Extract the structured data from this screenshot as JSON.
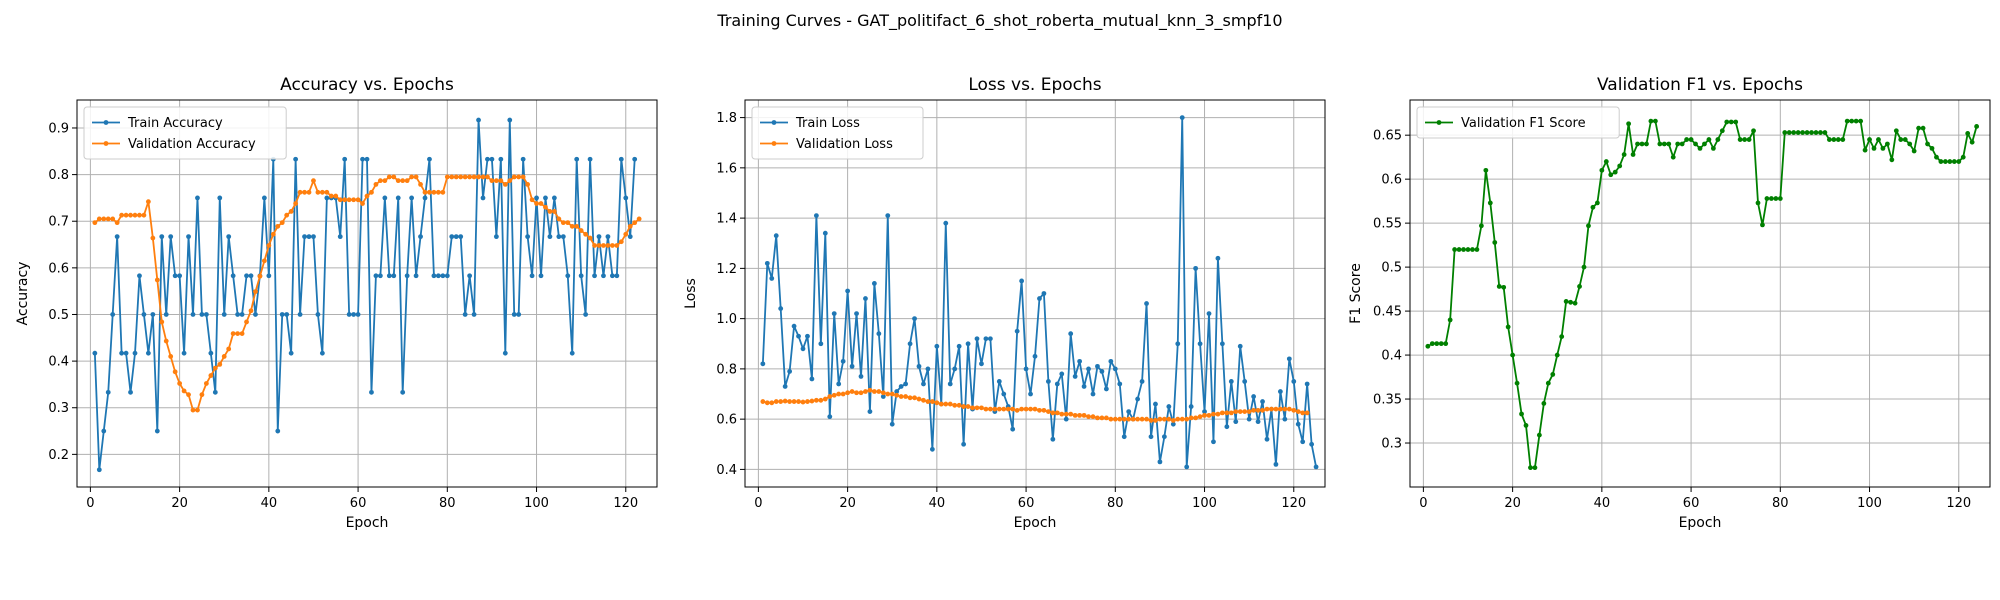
{
  "figure": {
    "suptitle": "Training Curves - GAT_politifact_6_shot_roberta_mutual_knn_3_smpf10"
  },
  "colors": {
    "train": "#1f77b4",
    "val": "#ff7f0e",
    "f1": "#008000",
    "grid": "#b0b0b0"
  },
  "chart_data": [
    {
      "type": "line",
      "title": "Accuracy vs. Epochs",
      "xlabel": "Epoch",
      "ylabel": "Accuracy",
      "xlim": [
        -3,
        127
      ],
      "ylim": [
        0.13,
        0.96
      ],
      "xticks": [
        0,
        20,
        40,
        60,
        80,
        100,
        120
      ],
      "yticks": [
        0.2,
        0.3,
        0.4,
        0.5,
        0.6,
        0.7,
        0.8,
        0.9
      ],
      "grid": true,
      "legend_position": "upper left",
      "x_start": 1,
      "series": [
        {
          "name": "Train Accuracy",
          "color": "#1f77b4",
          "values": [
            0.417,
            0.167,
            0.25,
            0.333,
            0.5,
            0.667,
            0.417,
            0.417,
            0.333,
            0.417,
            0.583,
            0.5,
            0.417,
            0.5,
            0.25,
            0.667,
            0.5,
            0.667,
            0.583,
            0.583,
            0.417,
            0.667,
            0.5,
            0.75,
            0.5,
            0.5,
            0.417,
            0.333,
            0.75,
            0.5,
            0.667,
            0.583,
            0.5,
            0.5,
            0.583,
            0.583,
            0.5,
            0.583,
            0.75,
            0.583,
            0.833,
            0.25,
            0.5,
            0.5,
            0.417,
            0.833,
            0.5,
            0.667,
            0.667,
            0.667,
            0.5,
            0.417,
            0.75,
            0.75,
            0.75,
            0.667,
            0.833,
            0.5,
            0.5,
            0.5,
            0.833,
            0.833,
            0.333,
            0.583,
            0.583,
            0.75,
            0.583,
            0.583,
            0.75,
            0.333,
            0.583,
            0.75,
            0.583,
            0.667,
            0.75,
            0.833,
            0.583,
            0.583,
            0.583,
            0.583,
            0.667,
            0.667,
            0.667,
            0.5,
            0.583,
            0.5,
            0.917,
            0.75,
            0.833,
            0.833,
            0.667,
            0.833,
            0.417,
            0.917,
            0.5,
            0.5,
            0.833,
            0.667,
            0.583,
            0.75,
            0.583,
            0.75,
            0.667,
            0.75,
            0.667,
            0.667,
            0.583,
            0.417,
            0.833,
            0.583,
            0.5,
            0.833,
            0.583,
            0.667,
            0.583,
            0.667,
            0.583,
            0.583,
            0.833,
            0.75,
            0.667,
            0.833
          ]
        },
        {
          "name": "Validation Accuracy",
          "color": "#ff7f0e",
          "values": [
            0.697,
            0.705,
            0.705,
            0.705,
            0.705,
            0.697,
            0.713,
            0.713,
            0.713,
            0.713,
            0.713,
            0.713,
            0.742,
            0.664,
            0.574,
            0.484,
            0.443,
            0.41,
            0.377,
            0.352,
            0.336,
            0.328,
            0.295,
            0.295,
            0.328,
            0.352,
            0.369,
            0.385,
            0.393,
            0.41,
            0.426,
            0.459,
            0.459,
            0.459,
            0.484,
            0.508,
            0.549,
            0.582,
            0.615,
            0.648,
            0.672,
            0.689,
            0.697,
            0.713,
            0.721,
            0.738,
            0.762,
            0.762,
            0.762,
            0.787,
            0.762,
            0.762,
            0.762,
            0.754,
            0.754,
            0.746,
            0.746,
            0.746,
            0.746,
            0.746,
            0.738,
            0.754,
            0.762,
            0.779,
            0.787,
            0.787,
            0.795,
            0.795,
            0.787,
            0.787,
            0.787,
            0.795,
            0.795,
            0.779,
            0.762,
            0.762,
            0.762,
            0.762,
            0.762,
            0.795,
            0.795,
            0.795,
            0.795,
            0.795,
            0.795,
            0.795,
            0.795,
            0.795,
            0.795,
            0.787,
            0.787,
            0.787,
            0.779,
            0.787,
            0.795,
            0.795,
            0.795,
            0.779,
            0.746,
            0.738,
            0.738,
            0.73,
            0.721,
            0.721,
            0.705,
            0.697,
            0.697,
            0.689,
            0.689,
            0.68,
            0.672,
            0.664,
            0.648,
            0.648,
            0.648,
            0.648,
            0.648,
            0.648,
            0.656,
            0.672,
            0.689,
            0.697,
            0.705
          ]
        }
      ]
    },
    {
      "type": "line",
      "title": "Loss vs. Epochs",
      "xlabel": "Epoch",
      "ylabel": "Loss",
      "xlim": [
        -3,
        127
      ],
      "ylim": [
        0.33,
        1.87
      ],
      "xticks": [
        0,
        20,
        40,
        60,
        80,
        100,
        120
      ],
      "yticks": [
        0.4,
        0.6,
        0.8,
        1.0,
        1.2,
        1.4,
        1.6,
        1.8
      ],
      "grid": true,
      "legend_position": "upper left",
      "x_start": 1,
      "series": [
        {
          "name": "Train Loss",
          "color": "#1f77b4",
          "values": [
            0.82,
            1.22,
            1.16,
            1.33,
            1.04,
            0.73,
            0.79,
            0.97,
            0.93,
            0.88,
            0.93,
            0.76,
            1.41,
            0.9,
            1.34,
            0.61,
            1.02,
            0.74,
            0.83,
            1.11,
            0.81,
            1.02,
            0.77,
            1.08,
            0.63,
            1.14,
            0.94,
            0.69,
            1.41,
            0.58,
            0.71,
            0.73,
            0.74,
            0.9,
            1.0,
            0.81,
            0.74,
            0.8,
            0.48,
            0.89,
            0.66,
            1.38,
            0.74,
            0.8,
            0.89,
            0.5,
            0.9,
            0.64,
            0.92,
            0.82,
            0.92,
            0.92,
            0.63,
            0.75,
            0.7,
            0.65,
            0.56,
            0.95,
            1.15,
            0.8,
            0.7,
            0.85,
            1.08,
            1.1,
            0.75,
            0.52,
            0.74,
            0.78,
            0.6,
            0.94,
            0.77,
            0.83,
            0.73,
            0.8,
            0.7,
            0.81,
            0.79,
            0.72,
            0.83,
            0.8,
            0.74,
            0.53,
            0.63,
            0.6,
            0.68,
            0.75,
            1.06,
            0.53,
            0.66,
            0.43,
            0.53,
            0.65,
            0.58,
            0.9,
            1.8,
            0.41,
            0.65,
            1.2,
            0.9,
            0.63,
            1.02,
            0.51,
            1.24,
            0.9,
            0.57,
            0.75,
            0.59,
            0.89,
            0.75,
            0.6,
            0.69,
            0.59,
            0.67,
            0.52,
            0.64,
            0.42,
            0.71,
            0.6,
            0.84,
            0.75,
            0.58,
            0.51,
            0.74,
            0.5,
            0.41
          ]
        },
        {
          "name": "Validation Loss",
          "color": "#ff7f0e",
          "values": [
            0.67,
            0.665,
            0.665,
            0.67,
            0.67,
            0.672,
            0.67,
            0.67,
            0.67,
            0.668,
            0.67,
            0.672,
            0.675,
            0.675,
            0.68,
            0.69,
            0.695,
            0.7,
            0.7,
            0.705,
            0.71,
            0.705,
            0.705,
            0.71,
            0.715,
            0.71,
            0.71,
            0.705,
            0.7,
            0.7,
            0.695,
            0.69,
            0.69,
            0.685,
            0.685,
            0.68,
            0.675,
            0.67,
            0.67,
            0.665,
            0.66,
            0.66,
            0.66,
            0.655,
            0.655,
            0.65,
            0.65,
            0.645,
            0.645,
            0.645,
            0.64,
            0.64,
            0.64,
            0.64,
            0.64,
            0.64,
            0.64,
            0.635,
            0.64,
            0.64,
            0.64,
            0.64,
            0.635,
            0.635,
            0.63,
            0.625,
            0.625,
            0.62,
            0.62,
            0.62,
            0.615,
            0.615,
            0.615,
            0.61,
            0.61,
            0.605,
            0.605,
            0.605,
            0.6,
            0.6,
            0.6,
            0.6,
            0.6,
            0.6,
            0.6,
            0.6,
            0.6,
            0.595,
            0.595,
            0.6,
            0.6,
            0.6,
            0.595,
            0.6,
            0.6,
            0.6,
            0.605,
            0.605,
            0.61,
            0.615,
            0.615,
            0.62,
            0.62,
            0.625,
            0.625,
            0.625,
            0.63,
            0.63,
            0.63,
            0.63,
            0.635,
            0.635,
            0.635,
            0.64,
            0.64,
            0.64,
            0.64,
            0.64,
            0.64,
            0.635,
            0.63,
            0.625,
            0.625
          ]
        }
      ]
    },
    {
      "type": "line",
      "title": "Validation F1 vs. Epochs",
      "xlabel": "Epoch",
      "ylabel": "F1 Score",
      "xlim": [
        -3,
        127
      ],
      "ylim": [
        0.25,
        0.69
      ],
      "xticks": [
        0,
        20,
        40,
        60,
        80,
        100,
        120
      ],
      "yticks": [
        0.3,
        0.35,
        0.4,
        0.45,
        0.5,
        0.55,
        0.6,
        0.65
      ],
      "grid": true,
      "legend_position": "upper left",
      "x_start": 1,
      "series": [
        {
          "name": "Validation F1 Score",
          "color": "#008000",
          "values": [
            0.41,
            0.413,
            0.413,
            0.413,
            0.413,
            0.44,
            0.52,
            0.52,
            0.52,
            0.52,
            0.52,
            0.52,
            0.547,
            0.61,
            0.573,
            0.528,
            0.478,
            0.477,
            0.432,
            0.4,
            0.368,
            0.333,
            0.32,
            0.272,
            0.272,
            0.309,
            0.345,
            0.368,
            0.378,
            0.4,
            0.421,
            0.461,
            0.46,
            0.459,
            0.478,
            0.5,
            0.547,
            0.568,
            0.573,
            0.61,
            0.62,
            0.605,
            0.608,
            0.615,
            0.628,
            0.663,
            0.628,
            0.64,
            0.64,
            0.64,
            0.666,
            0.666,
            0.64,
            0.64,
            0.64,
            0.625,
            0.64,
            0.64,
            0.645,
            0.645,
            0.64,
            0.635,
            0.64,
            0.645,
            0.635,
            0.645,
            0.655,
            0.665,
            0.665,
            0.665,
            0.645,
            0.645,
            0.645,
            0.655,
            0.573,
            0.548,
            0.578,
            0.578,
            0.578,
            0.578,
            0.653,
            0.653,
            0.653,
            0.653,
            0.653,
            0.653,
            0.653,
            0.653,
            0.653,
            0.653,
            0.645,
            0.645,
            0.645,
            0.645,
            0.666,
            0.666,
            0.666,
            0.666,
            0.633,
            0.645,
            0.635,
            0.645,
            0.635,
            0.64,
            0.622,
            0.655,
            0.645,
            0.645,
            0.64,
            0.632,
            0.658,
            0.658,
            0.64,
            0.635,
            0.625,
            0.62,
            0.62,
            0.62,
            0.62,
            0.62,
            0.625,
            0.652,
            0.642,
            0.66
          ]
        }
      ]
    }
  ]
}
